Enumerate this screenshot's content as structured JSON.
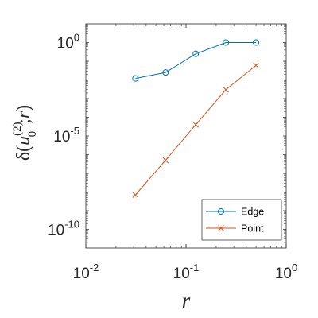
{
  "chart_data": {
    "type": "line",
    "x_scale": "log",
    "y_scale": "log",
    "xlabel": "r",
    "ylabel": {
      "prefix": "δ(",
      "var": "u",
      "sup": "(2)",
      "sub": "0",
      "sep": ";",
      "arg": "r",
      "suffix": ")"
    },
    "xlim": [
      0.01,
      1
    ],
    "ylim": [
      1e-11,
      10
    ],
    "grid": false,
    "legend_position": "bottom-right",
    "x_ticks": [
      {
        "base": "10",
        "exp": "-2",
        "value": 0.01
      },
      {
        "base": "10",
        "exp": "-1",
        "value": 0.1
      },
      {
        "base": "10",
        "exp": "0",
        "value": 1
      }
    ],
    "y_ticks": [
      {
        "base": "10",
        "exp": "-10",
        "value": 1e-10
      },
      {
        "base": "10",
        "exp": "-5",
        "value": 1e-05
      },
      {
        "base": "10",
        "exp": "0",
        "value": 1
      }
    ],
    "series": [
      {
        "name": "Edge",
        "marker": "circle",
        "color": "#0072BD",
        "x": [
          0.03125,
          0.0625,
          0.125,
          0.25,
          0.5
        ],
        "y": [
          0.012,
          0.025,
          0.25,
          1.0,
          1.0
        ]
      },
      {
        "name": "Point",
        "marker": "x",
        "color": "#D95319",
        "x": [
          0.03125,
          0.0625,
          0.125,
          0.25,
          0.5
        ],
        "y": [
          7e-09,
          5e-07,
          4e-05,
          0.003,
          0.06
        ]
      }
    ]
  }
}
